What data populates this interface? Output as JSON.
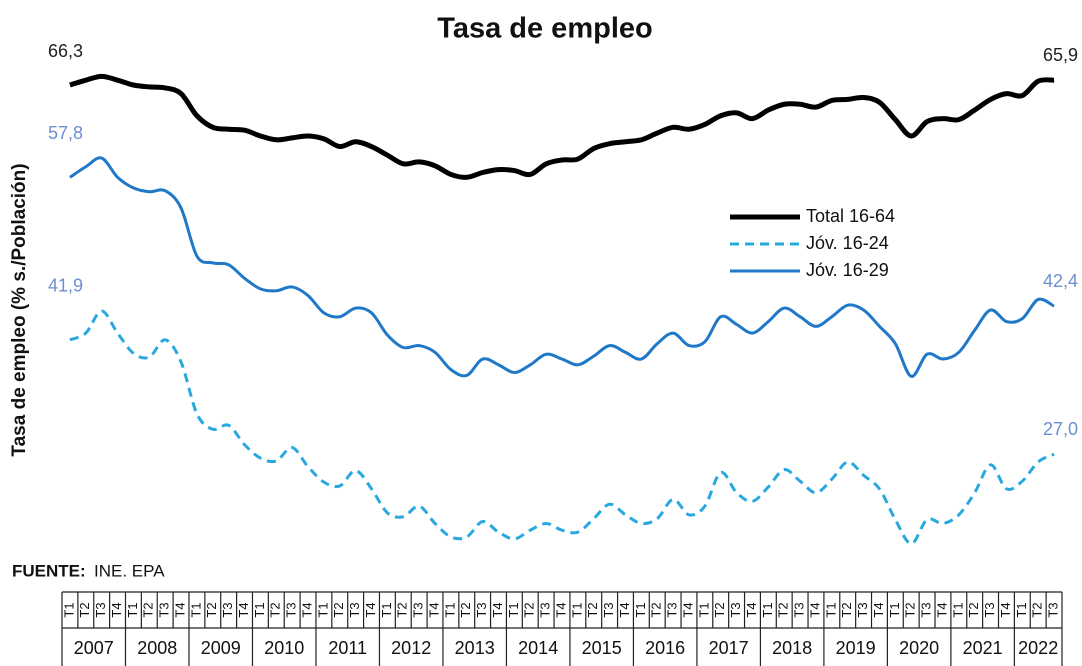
{
  "chart_data": {
    "type": "line",
    "title": "Tasa de empleo",
    "y_label": "Tasa de empleo (% s./Población)",
    "source_label": "FUENTE:",
    "source": "INE. EPA",
    "ylim": [
      16,
      68
    ],
    "years": [
      "2007",
      "2008",
      "2009",
      "2010",
      "2011",
      "2012",
      "2013",
      "2014",
      "2015",
      "2016",
      "2017",
      "2018",
      "2019",
      "2020",
      "2021",
      "2022"
    ],
    "categories": [
      "T1",
      "T2",
      "T3",
      "T4",
      "T1",
      "T2",
      "T3",
      "T4",
      "T1",
      "T2",
      "T3",
      "T4",
      "T1",
      "T2",
      "T3",
      "T4",
      "T1",
      "T2",
      "T3",
      "T4",
      "T1",
      "T2",
      "T3",
      "T4",
      "T1",
      "T2",
      "T3",
      "T4",
      "T1",
      "T2",
      "T3",
      "T4",
      "T1",
      "T2",
      "T3",
      "T4",
      "T1",
      "T2",
      "T3",
      "T4",
      "T1",
      "T2",
      "T3",
      "T4",
      "T1",
      "T2",
      "T3",
      "T4",
      "T1",
      "T2",
      "T3",
      "T4",
      "T1",
      "T2",
      "T3",
      "T4",
      "T1",
      "T2",
      "T3",
      "T4",
      "T1",
      "T2",
      "T3"
    ],
    "legend": "right",
    "series": [
      {
        "name": "Total 16-64",
        "color": "#000000",
        "dash": false,
        "label_color": "#222222",
        "values": [
          65.4,
          65.9,
          66.3,
          65.9,
          65.4,
          65.2,
          65.1,
          64.5,
          62.2,
          61.0,
          60.8,
          60.7,
          60.1,
          59.7,
          59.9,
          60.1,
          59.8,
          59.0,
          59.5,
          59.0,
          58.1,
          57.2,
          57.4,
          57.0,
          56.1,
          55.8,
          56.3,
          56.6,
          56.5,
          56.1,
          57.2,
          57.6,
          57.7,
          58.8,
          59.3,
          59.5,
          59.7,
          60.4,
          61.0,
          60.8,
          61.3,
          62.2,
          62.5,
          61.9,
          62.8,
          63.4,
          63.4,
          63.1,
          63.8,
          63.9,
          64.1,
          63.6,
          61.8,
          60.1,
          61.6,
          61.9,
          61.8,
          62.8,
          63.9,
          64.5,
          64.3,
          65.8,
          65.9
        ],
        "value_labels": [
          null,
          null,
          "66,3",
          null,
          null,
          null,
          null,
          null,
          null,
          null,
          null,
          null,
          null,
          null,
          null,
          null,
          null,
          null,
          null,
          null,
          null,
          null,
          null,
          null,
          null,
          null,
          null,
          null,
          null,
          null,
          null,
          null,
          null,
          null,
          null,
          null,
          null,
          null,
          null,
          null,
          null,
          null,
          null,
          null,
          null,
          null,
          null,
          null,
          null,
          null,
          null,
          null,
          null,
          null,
          null,
          null,
          null,
          null,
          null,
          null,
          null,
          null,
          "65,9"
        ]
      },
      {
        "name": "Jóv. 16-24",
        "color": "#29a8e0",
        "dash": true,
        "label_color": "#6b8fd2",
        "values": [
          38.9,
          39.6,
          41.9,
          39.6,
          37.5,
          37.1,
          38.9,
          36.6,
          31.2,
          29.6,
          30.0,
          28.0,
          26.6,
          26.3,
          27.7,
          25.7,
          24.1,
          23.7,
          25.3,
          23.4,
          20.9,
          20.5,
          21.6,
          19.8,
          18.4,
          18.4,
          20.0,
          18.9,
          18.2,
          19.1,
          19.8,
          19.1,
          18.9,
          20.3,
          21.8,
          20.7,
          19.8,
          20.3,
          22.3,
          20.7,
          21.6,
          25.1,
          23.0,
          22.1,
          23.6,
          25.4,
          24.2,
          23.0,
          24.4,
          26.2,
          24.8,
          23.4,
          20.2,
          17.7,
          20.2,
          19.8,
          20.7,
          23.0,
          25.9,
          23.4,
          24.2,
          26.2,
          27.0
        ],
        "value_labels": [
          null,
          null,
          "41,9",
          null,
          null,
          null,
          null,
          null,
          null,
          null,
          null,
          null,
          null,
          null,
          null,
          null,
          null,
          null,
          null,
          null,
          null,
          null,
          null,
          null,
          null,
          null,
          null,
          null,
          null,
          null,
          null,
          null,
          null,
          null,
          null,
          null,
          null,
          null,
          null,
          null,
          null,
          null,
          null,
          null,
          null,
          null,
          null,
          null,
          null,
          null,
          null,
          null,
          null,
          null,
          null,
          null,
          null,
          null,
          null,
          null,
          null,
          null,
          "27,0"
        ]
      },
      {
        "name": "Jóv. 16-29",
        "color": "#1f78c8",
        "dash": false,
        "label_color": "#6b8fd2",
        "values": [
          55.8,
          56.9,
          57.8,
          55.8,
          54.7,
          54.3,
          54.4,
          52.6,
          47.6,
          46.9,
          46.7,
          45.3,
          44.2,
          44.0,
          44.4,
          43.5,
          41.7,
          41.3,
          42.2,
          41.7,
          39.4,
          38.1,
          38.3,
          37.6,
          35.8,
          35.2,
          36.9,
          36.3,
          35.5,
          36.3,
          37.4,
          36.9,
          36.3,
          37.2,
          38.3,
          37.6,
          36.9,
          38.5,
          39.6,
          38.3,
          38.7,
          41.3,
          40.5,
          39.6,
          40.8,
          42.2,
          41.3,
          40.3,
          41.3,
          42.5,
          42.0,
          40.3,
          38.5,
          35.1,
          37.4,
          36.9,
          37.6,
          39.9,
          42.0,
          40.8,
          41.1,
          43.1,
          42.4
        ],
        "value_labels": [
          null,
          null,
          "57,8",
          null,
          null,
          null,
          null,
          null,
          null,
          null,
          null,
          null,
          null,
          null,
          null,
          null,
          null,
          null,
          null,
          null,
          null,
          null,
          null,
          null,
          null,
          null,
          null,
          null,
          null,
          null,
          null,
          null,
          null,
          null,
          null,
          null,
          null,
          null,
          null,
          null,
          null,
          null,
          null,
          null,
          null,
          null,
          null,
          null,
          null,
          null,
          null,
          null,
          null,
          null,
          null,
          null,
          null,
          null,
          null,
          null,
          null,
          null,
          "42,4"
        ]
      }
    ]
  }
}
